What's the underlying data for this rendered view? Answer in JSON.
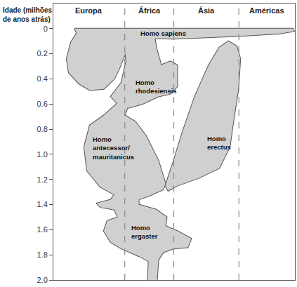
{
  "chart_data": {
    "type": "area",
    "ylabel": "Idade (milhões\nde anos atrás)",
    "ylim": [
      2.0,
      -0.2
    ],
    "yticks": [
      0,
      0.2,
      0.4,
      0.6,
      0.8,
      {
        "value": 1,
        "label": "1.0"
      },
      1.2,
      1.4,
      1.6,
      1.8,
      {
        "value": 2,
        "label": "2.0"
      }
    ],
    "xlim": [
      0,
      345
    ],
    "tick_labels": "y",
    "grid": false,
    "color": "#d0d0d0",
    "regions": [
      {
        "label": "Europa",
        "from": 0,
        "to": 102
      },
      {
        "label": "África",
        "from": 102,
        "to": 172
      },
      {
        "label": "Ásia",
        "from": 172,
        "to": 265
      },
      {
        "label": "Américas",
        "from": 265,
        "to": 345
      }
    ],
    "shapes": [
      {
        "points": [
          [
            30,
            0
          ],
          [
            172,
            0
          ],
          [
            342,
            0
          ],
          [
            344,
            0.02
          ],
          [
            322,
            0.04
          ],
          [
            262,
            0.06
          ],
          [
            172,
            0.08
          ],
          [
            72,
            0.07
          ],
          [
            34,
            0.04
          ]
        ]
      },
      {
        "points": [
          [
            34,
            0.03
          ],
          [
            52,
            0.01
          ],
          [
            82,
            0.02
          ],
          [
            100,
            0.07
          ],
          [
            104,
            0.18
          ],
          [
            94,
            0.32
          ],
          [
            87,
            0.4
          ],
          [
            72,
            0.48
          ],
          [
            52,
            0.49
          ],
          [
            37,
            0.44
          ],
          [
            22,
            0.35
          ],
          [
            19,
            0.24
          ],
          [
            25,
            0.11
          ]
        ]
      },
      {
        "points": [
          [
            100,
            0.05
          ],
          [
            144,
            0.05
          ],
          [
            147,
            0.15
          ],
          [
            154,
            0.29
          ],
          [
            167,
            0.26
          ],
          [
            177,
            0.29
          ],
          [
            177,
            0.37
          ],
          [
            177,
            0.46
          ],
          [
            167,
            0.52
          ],
          [
            150,
            0.54
          ],
          [
            127,
            0.6
          ],
          [
            107,
            0.63
          ],
          [
            92,
            0.6
          ],
          [
            82,
            0.54
          ],
          [
            97,
            0.43
          ],
          [
            104,
            0.26
          ]
        ]
      },
      {
        "points": [
          [
            92,
            0.59
          ],
          [
            107,
            0.61
          ],
          [
            102,
            0.69
          ],
          [
            117,
            0.74
          ],
          [
            132,
            0.85
          ],
          [
            150,
            1.05
          ],
          [
            160,
            1.23
          ],
          [
            157,
            1.28
          ],
          [
            137,
            1.33
          ],
          [
            122,
            1.36
          ],
          [
            122,
            1.4
          ],
          [
            147,
            1.44
          ],
          [
            162,
            1.5
          ],
          [
            160,
            1.57
          ],
          [
            177,
            1.61
          ],
          [
            197,
            1.67
          ],
          [
            192,
            1.74
          ],
          [
            172,
            1.75
          ],
          [
            157,
            1.78
          ],
          [
            150,
            1.84
          ],
          [
            148,
            2.0
          ],
          [
            135,
            2.0
          ],
          [
            136,
            1.85
          ],
          [
            122,
            1.81
          ],
          [
            97,
            1.75
          ],
          [
            82,
            1.7
          ],
          [
            72,
            1.61
          ],
          [
            77,
            1.53
          ],
          [
            92,
            1.5
          ],
          [
            87,
            1.44
          ],
          [
            67,
            1.42
          ],
          [
            62,
            1.39
          ],
          [
            82,
            1.36
          ],
          [
            87,
            1.32
          ],
          [
            67,
            1.26
          ],
          [
            48,
            1.13
          ],
          [
            44,
            0.94
          ],
          [
            52,
            0.77
          ],
          [
            72,
            0.69
          ]
        ]
      },
      {
        "points": [
          [
            160,
            1.25
          ],
          [
            172,
            1.05
          ],
          [
            184,
            0.83
          ],
          [
            202,
            0.54
          ],
          [
            222,
            0.29
          ],
          [
            237,
            0.15
          ],
          [
            250,
            0.1
          ],
          [
            262,
            0.14
          ],
          [
            267,
            0.24
          ],
          [
            264,
            0.49
          ],
          [
            257,
            0.74
          ],
          [
            252,
            0.94
          ],
          [
            237,
            1.11
          ],
          [
            207,
            1.19
          ],
          [
            177,
            1.25
          ],
          [
            164,
            1.29
          ]
        ]
      }
    ],
    "annotations": [
      {
        "text": "Homo sapiens",
        "x": 122,
        "y": 0.04
      },
      {
        "text": "Homo\nrhodesiensis",
        "x": 115,
        "y": 0.46
      },
      {
        "text": "Homo\nantecessor/\nmauritanicus",
        "x": 54,
        "y": 0.95
      },
      {
        "text": "Homo\nerectus",
        "x": 218,
        "y": 0.91
      },
      {
        "text": "Homo\nergaster",
        "x": 109,
        "y": 1.62
      }
    ]
  }
}
